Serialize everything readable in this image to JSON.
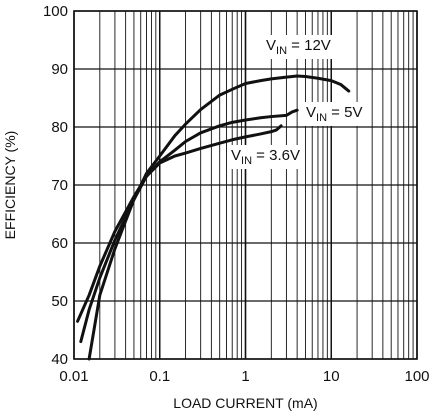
{
  "chart_data": {
    "type": "line",
    "title": "",
    "xlabel": "LOAD CURRENT (mA)",
    "ylabel": "EFFICIENCY (%)",
    "x_scale": "log",
    "xlim": [
      0.01,
      100
    ],
    "ylim": [
      40,
      100
    ],
    "x_ticks": [
      0.01,
      0.1,
      1,
      10,
      100
    ],
    "x_tick_labels": [
      "0.01",
      "0.1",
      "1",
      "10",
      "100"
    ],
    "y_ticks": [
      40,
      50,
      60,
      70,
      80,
      90,
      100
    ],
    "y_tick_labels": [
      "40",
      "50",
      "60",
      "70",
      "80",
      "90",
      "100"
    ],
    "grid": true,
    "legend": "none",
    "colors": {
      "line": "#111111",
      "grid": "#111111",
      "background": "#ffffff"
    },
    "series": [
      {
        "label_main": "V",
        "label_sub": "IN",
        "label_rest": " = 12V",
        "x": [
          0.015,
          0.02,
          0.03,
          0.05,
          0.07,
          0.1,
          0.15,
          0.2,
          0.3,
          0.5,
          0.7,
          1,
          1.5,
          2,
          3,
          4,
          5,
          7,
          10,
          13,
          16
        ],
        "y": [
          40,
          51,
          59,
          67.5,
          72,
          75,
          78.5,
          80.5,
          83,
          85.5,
          86.5,
          87.5,
          88,
          88.3,
          88.6,
          88.8,
          88.7,
          88.4,
          88,
          87.3,
          86.2
        ]
      },
      {
        "label_main": "V",
        "label_sub": "IN",
        "label_rest": " = 5V",
        "x": [
          0.012,
          0.015,
          0.02,
          0.03,
          0.05,
          0.07,
          0.1,
          0.15,
          0.2,
          0.3,
          0.5,
          0.7,
          1,
          1.5,
          2,
          3,
          3.5,
          4
        ],
        "y": [
          43,
          48.5,
          54,
          60.5,
          67.5,
          71.5,
          74,
          76,
          77.5,
          79,
          80.2,
          80.8,
          81.2,
          81.6,
          81.8,
          82,
          82.6,
          82.9
        ]
      },
      {
        "label_main": "V",
        "label_sub": "IN",
        "label_rest": " = 3.6V",
        "x": [
          0.011,
          0.015,
          0.02,
          0.03,
          0.05,
          0.07,
          0.1,
          0.15,
          0.2,
          0.3,
          0.5,
          0.7,
          1,
          1.5,
          2,
          2.3,
          2.6
        ],
        "y": [
          46.5,
          51,
          56,
          62,
          68,
          71.5,
          73.8,
          75,
          75.5,
          76.3,
          77.2,
          77.8,
          78.3,
          78.8,
          79.2,
          79.5,
          80.2
        ]
      }
    ]
  }
}
